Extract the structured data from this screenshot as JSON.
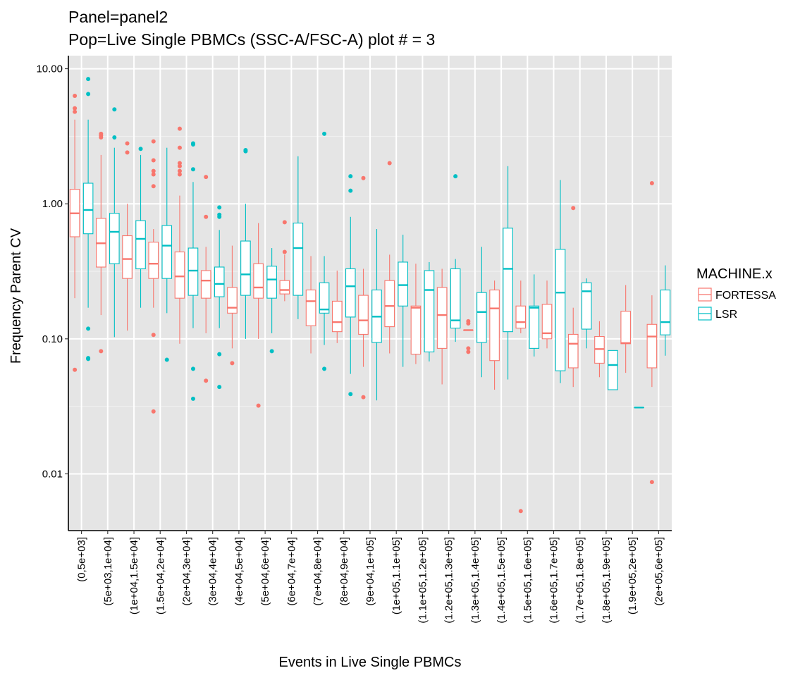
{
  "chart_data": {
    "type": "boxplot",
    "title_line1": "Panel=panel2",
    "title_line2": "Pop=Live Single PBMCs (SSC-A/FSC-A) plot # = 3",
    "xlabel": "Events in Live Single PBMCs",
    "ylabel": "Frequency Parent CV",
    "y_scale": "log10",
    "ylim": [
      0.0038,
      12.5
    ],
    "y_ticks": [
      0.01,
      0.1,
      1,
      10
    ],
    "y_tick_labels": [
      "0.01",
      "0.10",
      "1.00",
      "10.00"
    ],
    "grid": true,
    "legend": {
      "title": "MACHINE.x",
      "position": "right"
    },
    "categories": [
      "(0,5e+03]",
      "(5e+03,1e+04]",
      "(1e+04,1.5e+04]",
      "(1.5e+04,2e+04]",
      "(2e+04,3e+04]",
      "(3e+04,4e+04]",
      "(4e+04,5e+04]",
      "(5e+04,6e+04]",
      "(6e+04,7e+04]",
      "(7e+04,8e+04]",
      "(8e+04,9e+04]",
      "(9e+04,1e+05]",
      "(1e+05,1.1e+05]",
      "(1.1e+05,1.2e+05]",
      "(1.2e+05,1.3e+05]",
      "(1.3e+05,1.4e+05]",
      "(1.4e+05,1.5e+05]",
      "(1.5e+05,1.6e+05]",
      "(1.6e+05,1.7e+05]",
      "(1.7e+05,1.8e+05]",
      "(1.8e+05,1.9e+05]",
      "(1.9e+05,2e+05]",
      "(2e+05,6e+05]"
    ],
    "series": [
      {
        "name": "FORTESSA",
        "color": "#F8766D",
        "boxes": [
          {
            "cat": 0,
            "lower": 0.2,
            "q1": 0.57,
            "median": 0.85,
            "q3": 1.28,
            "upper": 4.2,
            "outliers": [
              6.3,
              5.1,
              4.8,
              0.059
            ]
          },
          {
            "cat": 1,
            "lower": 0.15,
            "q1": 0.34,
            "median": 0.51,
            "q3": 0.78,
            "upper": 2.3,
            "outliers": [
              3.3,
              3.2,
              3.1,
              0.081
            ]
          },
          {
            "cat": 2,
            "lower": 0.115,
            "q1": 0.28,
            "median": 0.39,
            "q3": 0.58,
            "upper": 1.0,
            "outliers": [
              2.8,
              2.4
            ]
          },
          {
            "cat": 3,
            "lower": 0.17,
            "q1": 0.28,
            "median": 0.36,
            "q3": 0.52,
            "upper": 0.65,
            "outliers": [
              2.9,
              2.1,
              1.75,
              1.65,
              1.35,
              0.107,
              0.029
            ]
          },
          {
            "cat": 4,
            "lower": 0.092,
            "q1": 0.2,
            "median": 0.29,
            "q3": 0.44,
            "upper": 1.15,
            "outliers": [
              3.6,
              2.6,
              2.0,
              1.9,
              1.75,
              1.65
            ]
          },
          {
            "cat": 5,
            "lower": 0.11,
            "q1": 0.2,
            "median": 0.27,
            "q3": 0.32,
            "upper": 0.48,
            "outliers": [
              1.58,
              0.8,
              0.049
            ]
          },
          {
            "cat": 6,
            "lower": 0.085,
            "q1": 0.155,
            "median": 0.17,
            "q3": 0.24,
            "upper": 0.49,
            "outliers": [
              0.066
            ]
          },
          {
            "cat": 7,
            "lower": 0.1,
            "q1": 0.2,
            "median": 0.24,
            "q3": 0.36,
            "upper": 0.72,
            "outliers": [
              0.032
            ]
          },
          {
            "cat": 8,
            "lower": 0.19,
            "q1": 0.215,
            "median": 0.23,
            "q3": 0.27,
            "upper": 0.42,
            "outliers": [
              0.73,
              0.44
            ]
          },
          {
            "cat": 9,
            "lower": 0.078,
            "q1": 0.125,
            "median": 0.19,
            "q3": 0.23,
            "upper": 0.41,
            "outliers": []
          },
          {
            "cat": 10,
            "lower": 0.093,
            "q1": 0.113,
            "median": 0.133,
            "q3": 0.19,
            "upper": 0.32,
            "outliers": []
          },
          {
            "cat": 11,
            "lower": 0.062,
            "q1": 0.108,
            "median": 0.137,
            "q3": 0.21,
            "upper": 0.33,
            "outliers": [
              1.55,
              0.037
            ]
          },
          {
            "cat": 12,
            "lower": 0.078,
            "q1": 0.123,
            "median": 0.175,
            "q3": 0.27,
            "upper": 0.42,
            "outliers": [
              2.0
            ]
          },
          {
            "cat": 13,
            "lower": 0.065,
            "q1": 0.077,
            "median": 0.17,
            "q3": 0.175,
            "upper": 0.36,
            "outliers": []
          },
          {
            "cat": 14,
            "lower": 0.046,
            "q1": 0.085,
            "median": 0.15,
            "q3": 0.24,
            "upper": 0.33,
            "outliers": []
          },
          {
            "cat": 15,
            "lower": 0.116,
            "q1": 0.116,
            "median": 0.116,
            "q3": 0.116,
            "upper": 0.116,
            "outliers": [
              0.135,
              0.13,
              0.085,
              0.08
            ]
          },
          {
            "cat": 16,
            "lower": 0.042,
            "q1": 0.069,
            "median": 0.168,
            "q3": 0.23,
            "upper": 0.27,
            "outliers": []
          },
          {
            "cat": 17,
            "lower": 0.11,
            "q1": 0.12,
            "median": 0.133,
            "q3": 0.175,
            "upper": 0.27,
            "outliers": [
              0.0053
            ]
          },
          {
            "cat": 18,
            "lower": 0.085,
            "q1": 0.1,
            "median": 0.11,
            "q3": 0.18,
            "upper": 0.27,
            "outliers": []
          },
          {
            "cat": 19,
            "lower": 0.044,
            "q1": 0.061,
            "median": 0.092,
            "q3": 0.108,
            "upper": 0.17,
            "outliers": [
              0.93
            ]
          },
          {
            "cat": 20,
            "lower": 0.052,
            "q1": 0.066,
            "median": 0.084,
            "q3": 0.104,
            "upper": 0.135,
            "outliers": []
          },
          {
            "cat": 21,
            "lower": 0.056,
            "q1": 0.092,
            "median": 0.093,
            "q3": 0.16,
            "upper": 0.25,
            "outliers": []
          },
          {
            "cat": 22,
            "lower": 0.044,
            "q1": 0.061,
            "median": 0.104,
            "q3": 0.128,
            "upper": 0.21,
            "outliers": [
              1.42,
              0.0087
            ]
          }
        ]
      },
      {
        "name": "LSR",
        "color": "#00BFC4",
        "boxes": [
          {
            "cat": 0,
            "lower": 0.17,
            "q1": 0.6,
            "median": 0.9,
            "q3": 1.42,
            "upper": 4.2,
            "outliers": [
              8.4,
              6.5,
              0.119,
              0.072,
              0.071
            ]
          },
          {
            "cat": 1,
            "lower": 0.103,
            "q1": 0.36,
            "median": 0.62,
            "q3": 0.85,
            "upper": 2.6,
            "outliers": [
              5.0,
              3.1
            ]
          },
          {
            "cat": 2,
            "lower": 0.17,
            "q1": 0.33,
            "median": 0.55,
            "q3": 0.75,
            "upper": 2.3,
            "outliers": [
              2.55
            ]
          },
          {
            "cat": 3,
            "lower": 0.155,
            "q1": 0.28,
            "median": 0.49,
            "q3": 0.69,
            "upper": 2.6,
            "outliers": [
              0.07
            ]
          },
          {
            "cat": 4,
            "lower": 0.12,
            "q1": 0.21,
            "median": 0.32,
            "q3": 0.47,
            "upper": 1.45,
            "outliers": [
              2.8,
              2.75,
              1.8,
              0.06,
              0.036
            ]
          },
          {
            "cat": 5,
            "lower": 0.12,
            "q1": 0.205,
            "median": 0.255,
            "q3": 0.34,
            "upper": 0.64,
            "outliers": [
              0.94,
              0.83,
              0.8,
              0.077,
              0.044
            ]
          },
          {
            "cat": 6,
            "lower": 0.1,
            "q1": 0.21,
            "median": 0.3,
            "q3": 0.53,
            "upper": 1.0,
            "outliers": [
              2.5,
              2.45
            ]
          },
          {
            "cat": 7,
            "lower": 0.11,
            "q1": 0.2,
            "median": 0.275,
            "q3": 0.345,
            "upper": 0.47,
            "outliers": [
              0.081
            ]
          },
          {
            "cat": 8,
            "lower": 0.14,
            "q1": 0.21,
            "median": 0.47,
            "q3": 0.72,
            "upper": 2.25,
            "outliers": []
          },
          {
            "cat": 9,
            "lower": 0.09,
            "q1": 0.155,
            "median": 0.165,
            "q3": 0.26,
            "upper": 0.41,
            "outliers": [
              3.3,
              0.06
            ]
          },
          {
            "cat": 10,
            "lower": 0.055,
            "q1": 0.145,
            "median": 0.245,
            "q3": 0.33,
            "upper": 0.8,
            "outliers": [
              1.6,
              1.25,
              0.039
            ]
          },
          {
            "cat": 11,
            "lower": 0.035,
            "q1": 0.094,
            "median": 0.146,
            "q3": 0.23,
            "upper": 0.65,
            "outliers": []
          },
          {
            "cat": 12,
            "lower": 0.062,
            "q1": 0.175,
            "median": 0.25,
            "q3": 0.37,
            "upper": 0.59,
            "outliers": []
          },
          {
            "cat": 13,
            "lower": 0.068,
            "q1": 0.08,
            "median": 0.23,
            "q3": 0.32,
            "upper": 0.37,
            "outliers": []
          },
          {
            "cat": 14,
            "lower": 0.095,
            "q1": 0.12,
            "median": 0.137,
            "q3": 0.33,
            "upper": 0.39,
            "outliers": [
              1.6
            ]
          },
          {
            "cat": 15,
            "lower": 0.052,
            "q1": 0.094,
            "median": 0.158,
            "q3": 0.22,
            "upper": 0.48,
            "outliers": []
          },
          {
            "cat": 16,
            "lower": 0.05,
            "q1": 0.113,
            "median": 0.33,
            "q3": 0.66,
            "upper": 1.9,
            "outliers": []
          },
          {
            "cat": 17,
            "lower": 0.074,
            "q1": 0.085,
            "median": 0.17,
            "q3": 0.175,
            "upper": 0.3,
            "outliers": []
          },
          {
            "cat": 18,
            "lower": 0.047,
            "q1": 0.058,
            "median": 0.22,
            "q3": 0.46,
            "upper": 1.5,
            "outliers": []
          },
          {
            "cat": 19,
            "lower": 0.085,
            "q1": 0.118,
            "median": 0.225,
            "q3": 0.26,
            "upper": 0.28,
            "outliers": []
          },
          {
            "cat": 20,
            "lower": 0.042,
            "q1": 0.042,
            "median": 0.064,
            "q3": 0.082,
            "upper": 0.082,
            "outliers": []
          },
          {
            "cat": 21,
            "lower": 0.031,
            "q1": 0.031,
            "median": 0.031,
            "q3": 0.031,
            "upper": 0.031,
            "outliers": []
          },
          {
            "cat": 22,
            "lower": 0.075,
            "q1": 0.107,
            "median": 0.133,
            "q3": 0.23,
            "upper": 0.35,
            "outliers": []
          }
        ]
      }
    ]
  }
}
